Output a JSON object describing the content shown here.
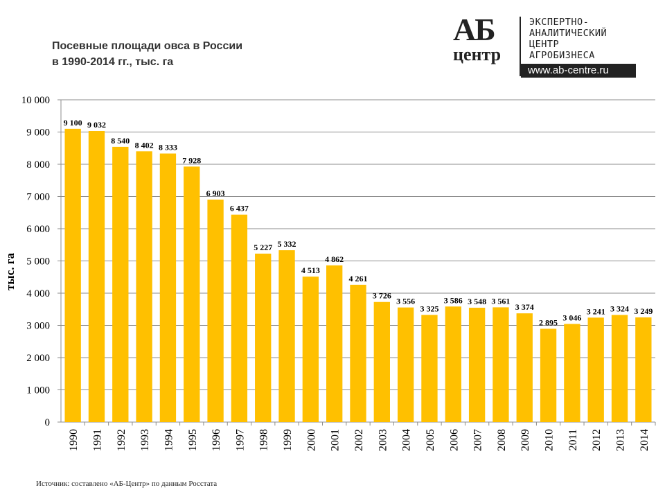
{
  "title_line1": "Посевные площади овса в России",
  "title_line2": "в 1990-2014 гг., тыс. га",
  "source": "Источник: составлено «АБ-Центр»  по данным Росстата",
  "logo": {
    "mark": "АБ",
    "mark_sub": "центр",
    "lines": [
      "ЭКСПЕРТНО-",
      "АНАЛИТИЧЕСКИЙ",
      "ЦЕНТР",
      "АГРОБИЗНЕСА"
    ],
    "url": "www.ab-centre.ru"
  },
  "chart_data": {
    "type": "bar",
    "title": "Посевные площади овса в России в 1990-2014 гг., тыс. га",
    "xlabel": "",
    "ylabel": "тыс. га",
    "ylim": [
      0,
      10000
    ],
    "yticks": [
      0,
      1000,
      2000,
      3000,
      4000,
      5000,
      6000,
      7000,
      8000,
      9000,
      10000
    ],
    "ytick_labels": [
      "0",
      "1 000",
      "2 000",
      "3 000",
      "4 000",
      "5 000",
      "6 000",
      "7 000",
      "8 000",
      "9 000",
      "10 000"
    ],
    "grid": true,
    "bar_color": "#FFC000",
    "categories": [
      "1990",
      "1991",
      "1992",
      "1993",
      "1994",
      "1995",
      "1996",
      "1997",
      "1998",
      "1999",
      "2000",
      "2001",
      "2002",
      "2003",
      "2004",
      "2005",
      "2006",
      "2007",
      "2008",
      "2009",
      "2010",
      "2011",
      "2012",
      "2013",
      "2014"
    ],
    "values": [
      9100,
      9032,
      8540,
      8402,
      8333,
      7928,
      6903,
      6437,
      5227,
      5332,
      4513,
      4862,
      4261,
      3726,
      3556,
      3325,
      3586,
      3548,
      3561,
      3374,
      2895,
      3046,
      3241,
      3324,
      3249
    ],
    "data_labels": [
      "9 100",
      "9 032",
      "8 540",
      "8 402",
      "8 333",
      "7 928",
      "6 903",
      "6 437",
      "5 227",
      "5 332",
      "4 513",
      "4 862",
      "4 261",
      "3 726",
      "3 556",
      "3 325",
      "3 586",
      "3 548",
      "3 561",
      "3 374",
      "2 895",
      "3 046",
      "3 241",
      "3 324",
      "3 249"
    ]
  }
}
